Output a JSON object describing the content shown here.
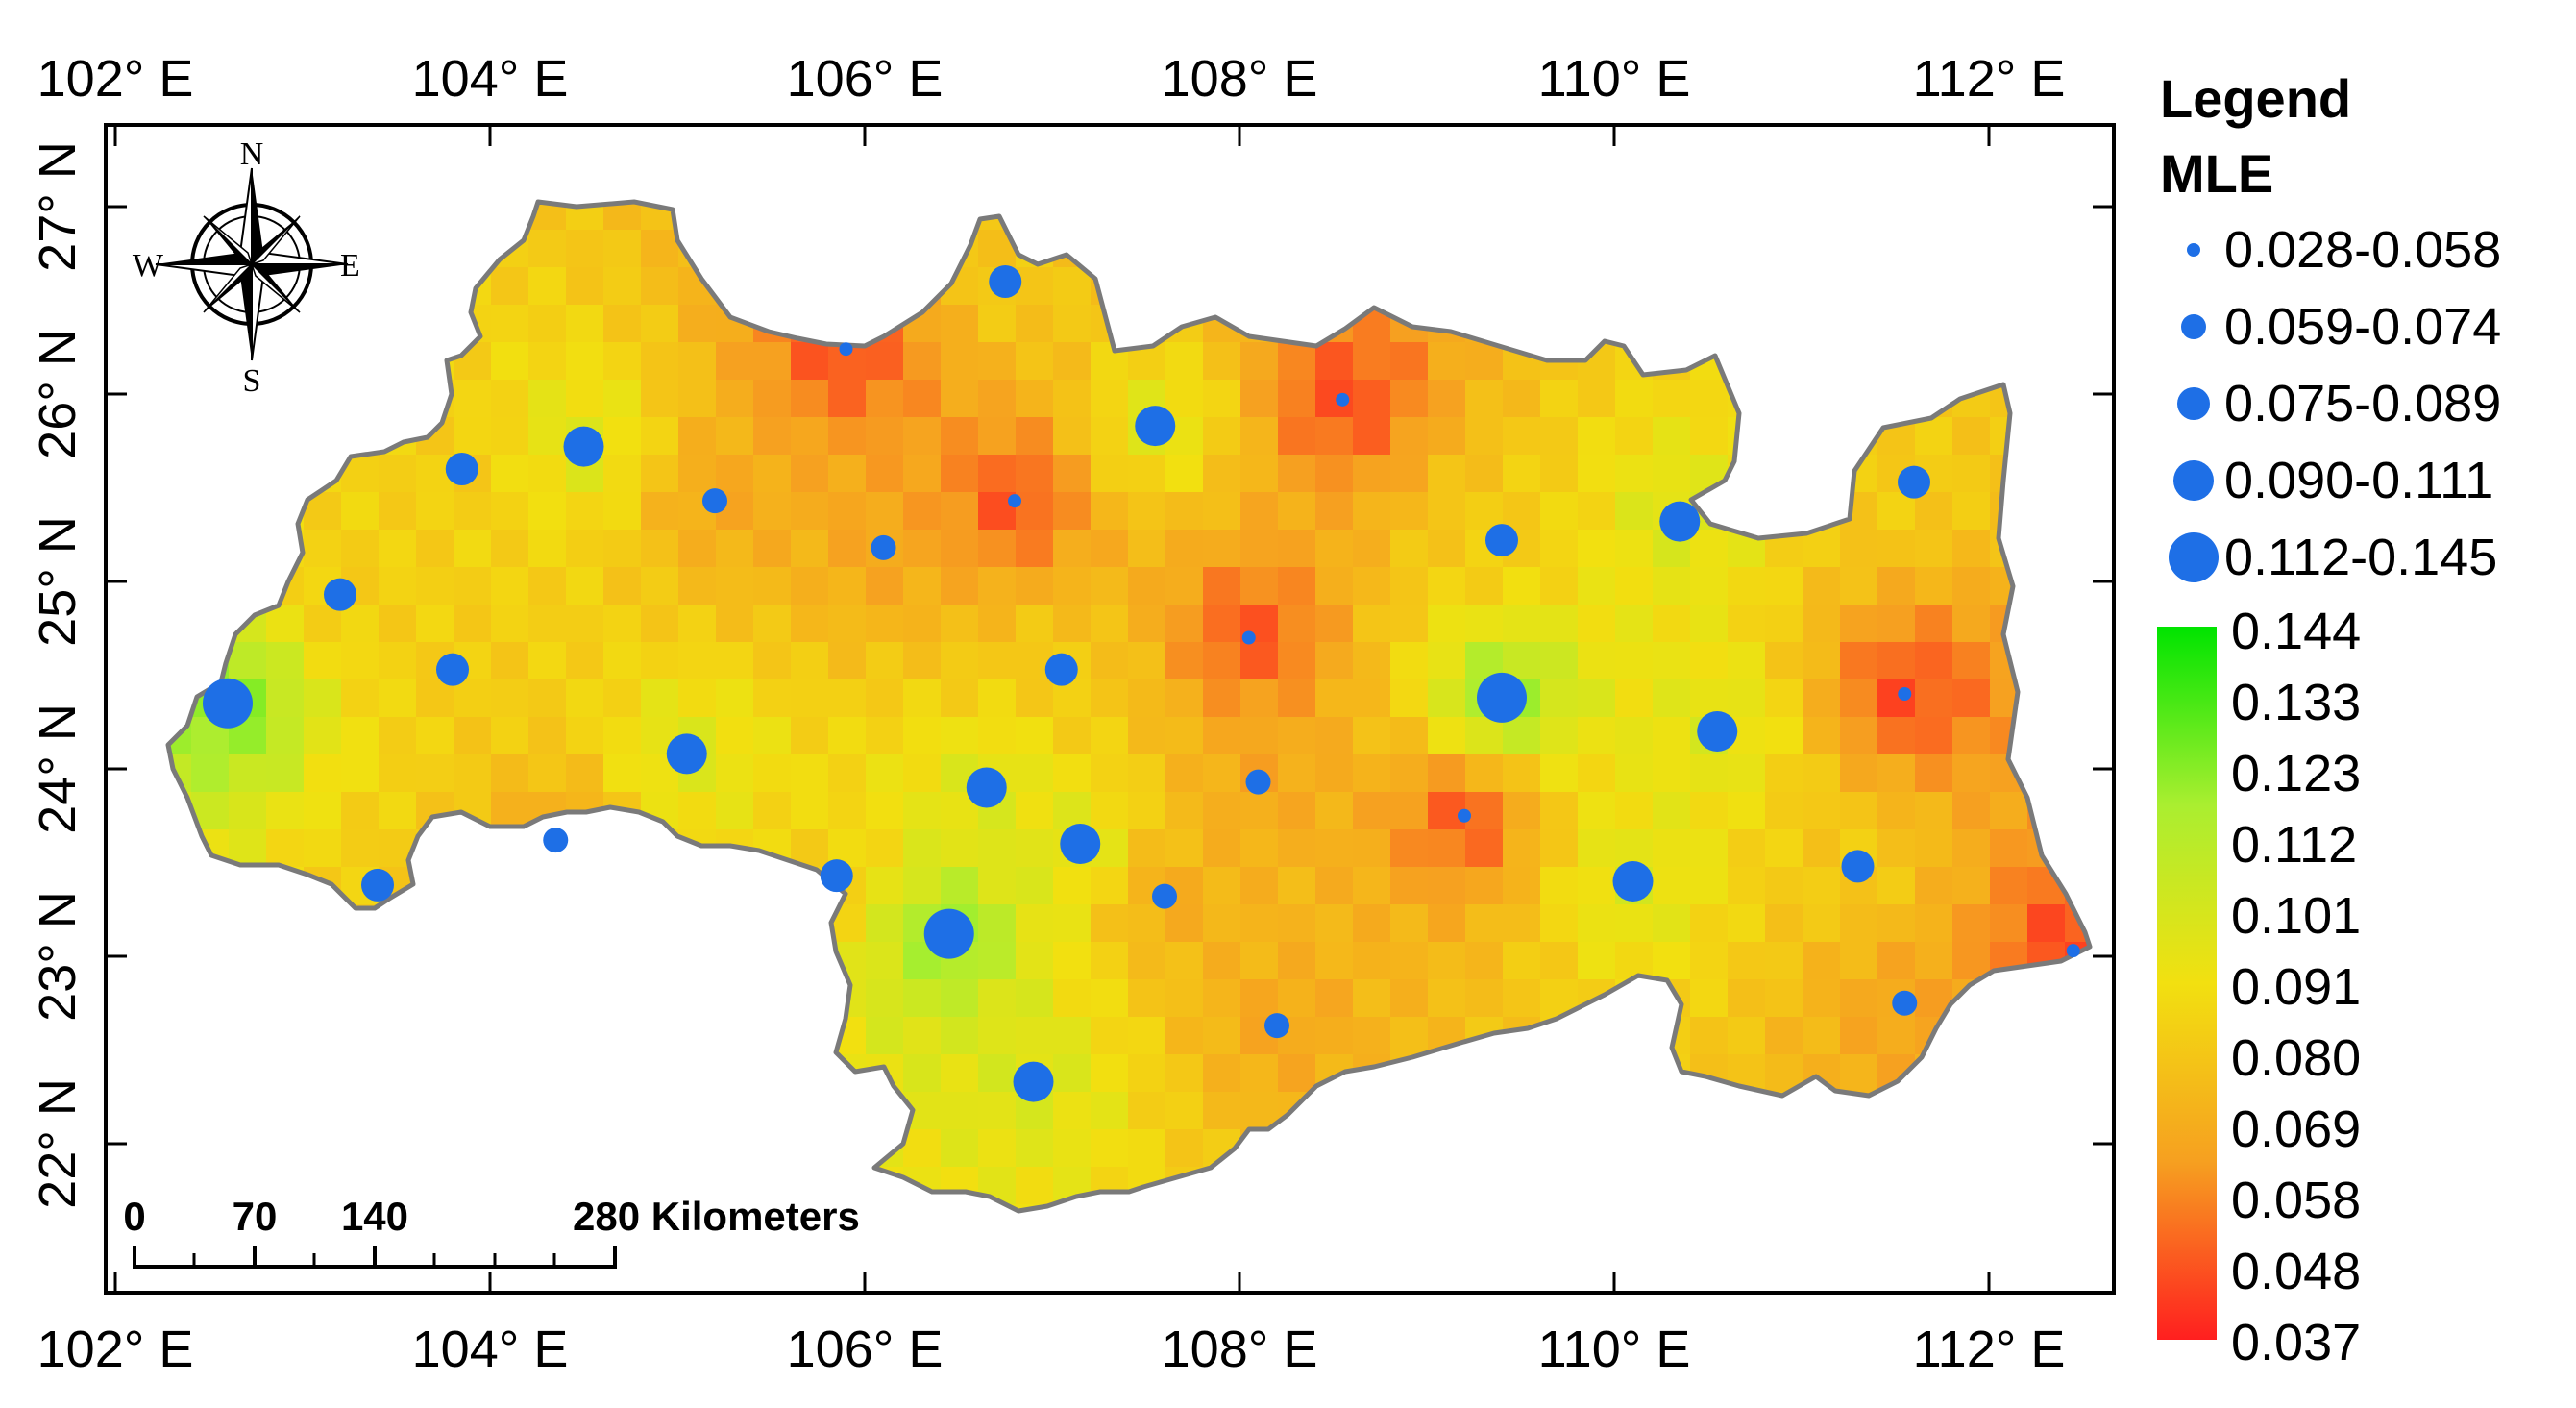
{
  "map": {
    "lon_ticks": [
      "102° E",
      "104° E",
      "106° E",
      "108° E",
      "110° E",
      "112° E"
    ],
    "lon_values": [
      102,
      104,
      106,
      108,
      110,
      112
    ],
    "lat_ticks": [
      "27° N",
      "26° N",
      "25° N",
      "24° N",
      "23° N",
      "22° N"
    ],
    "lat_values": [
      27,
      26,
      25,
      24,
      23,
      22
    ],
    "extent": {
      "lon_min": 101.95,
      "lon_max": 112.7,
      "lat_min": 21.4,
      "lat_max": 27.5
    }
  },
  "compass": {
    "n": "N",
    "s": "S",
    "e": "E",
    "w": "W"
  },
  "scalebar": {
    "labels": [
      "0",
      "70",
      "140",
      "280 Kilometers"
    ],
    "km": [
      0,
      70,
      140,
      280
    ]
  },
  "legend": {
    "title": "Legend",
    "subtitle": "MLE",
    "point_classes": [
      {
        "label": "0.028-0.058"
      },
      {
        "label": "0.059-0.074"
      },
      {
        "label": "0.075-0.089"
      },
      {
        "label": "0.090-0.111"
      },
      {
        "label": "0.112-0.145"
      }
    ],
    "colorbar_labels": [
      "0.144",
      "0.133",
      "0.123",
      "0.112",
      "0.101",
      "0.091",
      "0.080",
      "0.069",
      "0.058",
      "0.048",
      "0.037"
    ],
    "colorbar_colors": [
      "#00e400",
      "#aaee30",
      "#f2e010",
      "#f6a020",
      "#ff1f1f"
    ],
    "point_color": "#1e6fe6"
  },
  "stations": [
    {
      "lon": 102.6,
      "lat": 24.35,
      "cls": 4
    },
    {
      "lon": 103.2,
      "lat": 24.93,
      "cls": 2
    },
    {
      "lon": 103.4,
      "lat": 23.38,
      "cls": 2
    },
    {
      "lon": 103.8,
      "lat": 24.53,
      "cls": 2
    },
    {
      "lon": 103.85,
      "lat": 25.6,
      "cls": 2
    },
    {
      "lon": 104.35,
      "lat": 23.62,
      "cls": 1
    },
    {
      "lon": 104.5,
      "lat": 25.72,
      "cls": 3
    },
    {
      "lon": 105.05,
      "lat": 24.08,
      "cls": 3
    },
    {
      "lon": 105.2,
      "lat": 25.43,
      "cls": 1
    },
    {
      "lon": 105.85,
      "lat": 23.43,
      "cls": 2
    },
    {
      "lon": 105.9,
      "lat": 26.24,
      "cls": 0
    },
    {
      "lon": 106.1,
      "lat": 25.18,
      "cls": 1
    },
    {
      "lon": 106.45,
      "lat": 23.12,
      "cls": 4
    },
    {
      "lon": 106.65,
      "lat": 23.9,
      "cls": 3
    },
    {
      "lon": 106.75,
      "lat": 26.6,
      "cls": 2
    },
    {
      "lon": 106.8,
      "lat": 25.43,
      "cls": 0
    },
    {
      "lon": 106.9,
      "lat": 22.33,
      "cls": 3
    },
    {
      "lon": 107.05,
      "lat": 24.53,
      "cls": 2
    },
    {
      "lon": 107.15,
      "lat": 23.6,
      "cls": 3
    },
    {
      "lon": 107.55,
      "lat": 25.83,
      "cls": 3
    },
    {
      "lon": 107.6,
      "lat": 23.32,
      "cls": 1
    },
    {
      "lon": 108.05,
      "lat": 24.7,
      "cls": 0
    },
    {
      "lon": 108.1,
      "lat": 23.93,
      "cls": 1
    },
    {
      "lon": 108.2,
      "lat": 22.63,
      "cls": 1
    },
    {
      "lon": 108.55,
      "lat": 25.97,
      "cls": 0
    },
    {
      "lon": 109.2,
      "lat": 23.75,
      "cls": 0
    },
    {
      "lon": 109.4,
      "lat": 24.38,
      "cls": 4
    },
    {
      "lon": 109.4,
      "lat": 25.22,
      "cls": 2
    },
    {
      "lon": 110.1,
      "lat": 23.4,
      "cls": 3
    },
    {
      "lon": 110.35,
      "lat": 25.32,
      "cls": 3
    },
    {
      "lon": 110.55,
      "lat": 24.2,
      "cls": 3
    },
    {
      "lon": 111.3,
      "lat": 23.48,
      "cls": 2
    },
    {
      "lon": 111.55,
      "lat": 24.4,
      "cls": 0
    },
    {
      "lon": 111.55,
      "lat": 22.75,
      "cls": 1
    },
    {
      "lon": 111.6,
      "lat": 25.53,
      "cls": 2
    },
    {
      "lon": 112.45,
      "lat": 23.03,
      "cls": 0
    }
  ]
}
